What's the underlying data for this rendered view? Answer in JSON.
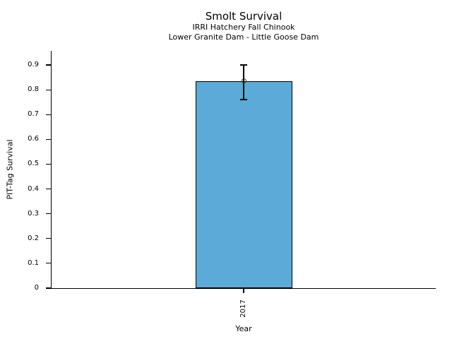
{
  "chart_data": {
    "type": "bar",
    "title": "Smolt Survival",
    "subtitle": [
      "IRRI Hatchery Fall Chinook",
      "Lower Granite Dam - Little Goose Dam"
    ],
    "xlabel": "Year",
    "ylabel": "PIT-Tag Survival",
    "categories": [
      "2017"
    ],
    "values": [
      0.835
    ],
    "error_low": [
      0.76
    ],
    "error_high": [
      0.9
    ],
    "ylim": [
      0,
      0.957
    ],
    "yticks": [
      0,
      0.1,
      0.2,
      0.3,
      0.4,
      0.5,
      0.6,
      0.7,
      0.8,
      0.9
    ],
    "ytick_labels": [
      "0",
      "0.1",
      "0.2",
      "0.3",
      "0.4",
      "0.5",
      "0.6",
      "0.7",
      "0.8",
      "0.9"
    ],
    "grid": false,
    "legend": "none",
    "colors": {
      "bar_fill": "#5baad7",
      "bar_edge": "#000000",
      "error": "#000000",
      "marker_edge": "#3a3a3a",
      "text": "#000000",
      "background": "#ffffff"
    }
  }
}
